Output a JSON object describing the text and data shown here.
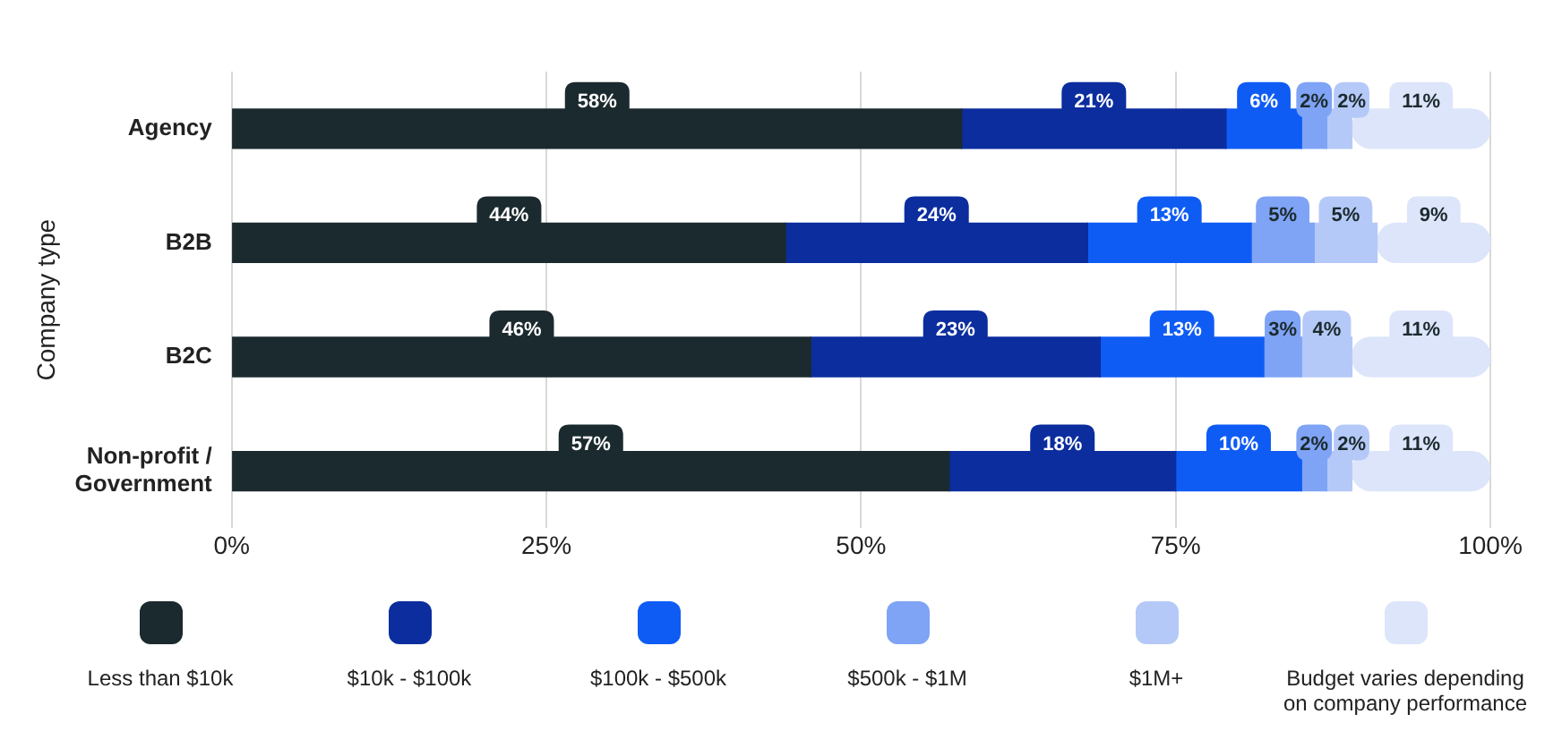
{
  "chart_data": {
    "type": "bar",
    "orientation": "horizontal",
    "stacked": true,
    "ylabel": "Company type",
    "categories": [
      "Agency",
      "B2B",
      "B2C",
      "Non-profit / Government"
    ],
    "series": [
      {
        "name": "Less than $10k",
        "color": "#1b2a2e",
        "values": [
          58,
          44,
          46,
          57
        ],
        "value_labels": [
          "58%",
          "44%",
          "46%",
          "57%"
        ]
      },
      {
        "name": "$10k - $100k",
        "color": "#0b2d9e",
        "values": [
          21,
          24,
          23,
          18
        ],
        "value_labels": [
          "21%",
          "24%",
          "23%",
          "18%"
        ]
      },
      {
        "name": "$100k - $500k",
        "color": "#0f5cf5",
        "values": [
          6,
          13,
          13,
          10
        ],
        "value_labels": [
          "6%",
          "13%",
          "13%",
          "10%"
        ]
      },
      {
        "name": "$500k - $1M",
        "color": "#7fa3f5",
        "values": [
          2,
          5,
          3,
          2
        ],
        "value_labels": [
          "2%",
          "5%",
          "3%",
          "2%"
        ]
      },
      {
        "name": "$1M+",
        "color": "#b5c9f8",
        "values": [
          2,
          5,
          4,
          2
        ],
        "value_labels": [
          "2%",
          "5%",
          "4%",
          "2%"
        ]
      },
      {
        "name": "Budget varies depending on company performance",
        "color": "#dde5fa",
        "values": [
          11,
          9,
          11,
          11
        ],
        "value_labels": [
          "11%",
          "9%",
          "11%",
          "11%"
        ]
      }
    ],
    "xlim": [
      0,
      100
    ],
    "xticks": [
      {
        "value": 0,
        "label": "0%"
      },
      {
        "value": 25,
        "label": "25%"
      },
      {
        "value": 50,
        "label": "50%"
      },
      {
        "value": 75,
        "label": "75%"
      },
      {
        "value": 100,
        "label": "100%"
      }
    ],
    "grid": "x",
    "legend": "bottom"
  }
}
